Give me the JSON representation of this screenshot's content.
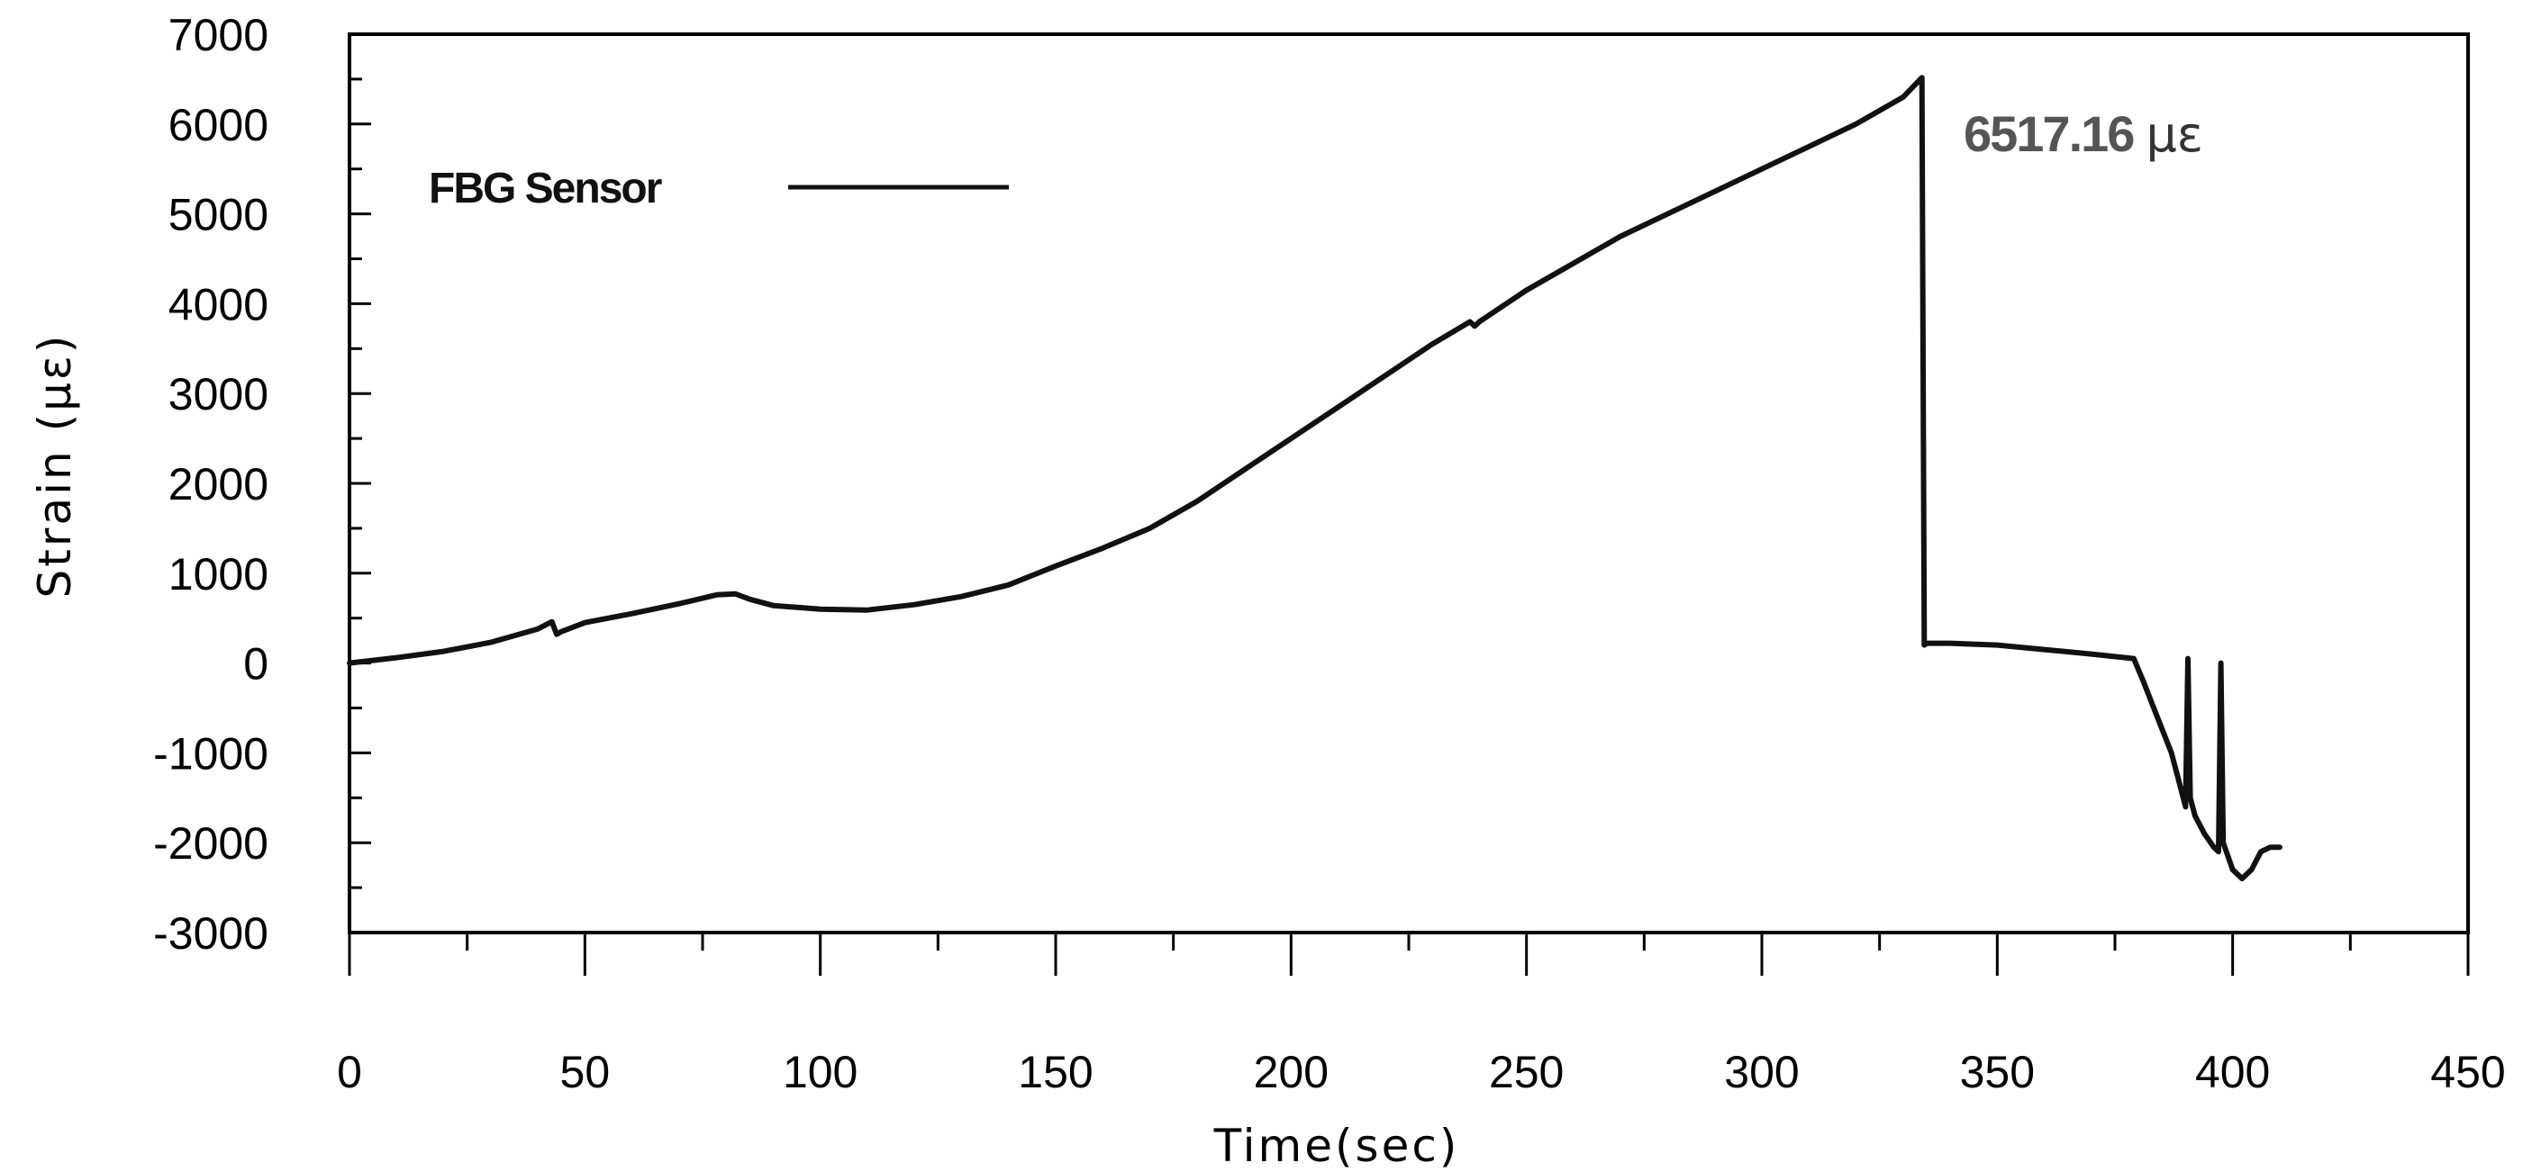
{
  "chart_data": {
    "type": "line",
    "title": "",
    "xlabel": "Time(sec)",
    "ylabel": "Strain (με)",
    "xlim": [
      0,
      450
    ],
    "ylim": [
      -3000,
      7000
    ],
    "x_ticks": [
      "0",
      "50",
      "100",
      "150",
      "200",
      "250",
      "300",
      "350",
      "400",
      "450"
    ],
    "y_ticks": [
      "7000",
      "6000",
      "5000",
      "4000",
      "3000",
      "2000",
      "1000",
      "0",
      "-1000",
      "-2000",
      "-3000"
    ],
    "grid": false,
    "legend": {
      "position": "top-left",
      "entries": [
        "FBG Sensor"
      ]
    },
    "annotation": {
      "value": "6517.16",
      "unit": "με"
    },
    "series": [
      {
        "name": "FBG Sensor",
        "color": "#111111",
        "x": [
          0,
          10,
          20,
          30,
          40,
          43,
          44,
          45,
          50,
          60,
          70,
          78,
          82,
          85,
          90,
          100,
          110,
          120,
          130,
          140,
          150,
          160,
          170,
          180,
          190,
          200,
          210,
          220,
          230,
          238,
          239,
          240,
          250,
          260,
          270,
          280,
          290,
          300,
          310,
          320,
          330,
          334,
          334.5,
          335,
          340,
          350,
          360,
          370,
          379,
          381,
          384,
          387,
          389,
          390,
          390.5,
          391,
          392,
          394,
          396,
          397,
          397.5,
          398,
          400,
          402,
          404,
          406,
          408,
          410
        ],
        "y": [
          0,
          60,
          130,
          230,
          380,
          460,
          320,
          350,
          450,
          550,
          660,
          760,
          770,
          710,
          640,
          600,
          590,
          650,
          740,
          870,
          1080,
          1280,
          1500,
          1800,
          2150,
          2500,
          2850,
          3200,
          3550,
          3800,
          3750,
          3800,
          4150,
          4450,
          4750,
          5000,
          5250,
          5500,
          5750,
          6000,
          6300,
          6517,
          200,
          220,
          220,
          200,
          150,
          100,
          50,
          -200,
          -600,
          -1000,
          -1400,
          -1600,
          50,
          -1500,
          -1700,
          -1900,
          -2050,
          -2100,
          0,
          -2000,
          -2300,
          -2400,
          -2300,
          -2100,
          -2050,
          -2050
        ]
      }
    ]
  }
}
